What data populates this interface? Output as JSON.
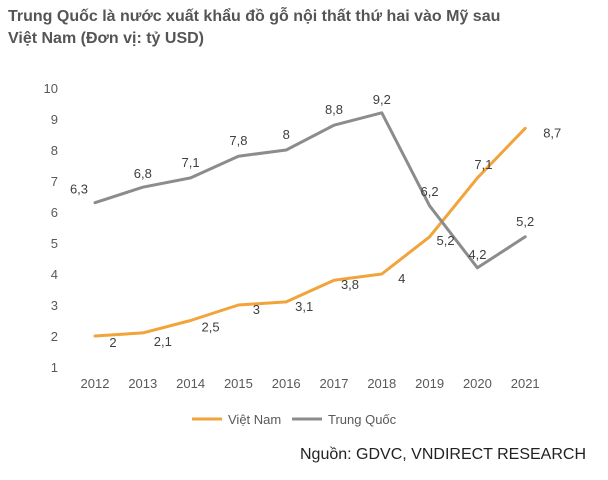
{
  "title": "Trung Quốc là nước xuất khẩu đồ gỗ nội thất thứ hai vào Mỹ sau Việt Nam (Đơn vị: tỷ USD)",
  "source": "Nguồn: GDVC, VNDIRECT RESEARCH",
  "chart_data": {
    "type": "line",
    "title": "Trung Quốc là nước xuất khẩu đồ gỗ nội thất thứ hai vào Mỹ sau Việt Nam (Đơn vị: tỷ USD)",
    "categories": [
      "2012",
      "2013",
      "2014",
      "2015",
      "2016",
      "2017",
      "2018",
      "2019",
      "2020",
      "2021"
    ],
    "ylim": [
      1,
      10
    ],
    "yticks": [
      "1",
      "2",
      "3",
      "4",
      "5",
      "6",
      "7",
      "8",
      "9",
      "10"
    ],
    "grid": false,
    "legend": "bottom",
    "series": [
      {
        "name": "Việt Nam",
        "color": "#F2A33A",
        "values": [
          2,
          2.1,
          2.5,
          3,
          3.1,
          3.8,
          4,
          5.2,
          7.1,
          8.7
        ],
        "labels": [
          "2",
          "2,1",
          "2,5",
          "3",
          "3,1",
          "3,8",
          "4",
          "5,2",
          "7,1",
          "8,7"
        ]
      },
      {
        "name": "Trung Quốc",
        "color": "#8C8C8C",
        "values": [
          6.3,
          6.8,
          7.1,
          7.8,
          8,
          8.8,
          9.2,
          6.2,
          4.2,
          5.2
        ],
        "labels": [
          "6,3",
          "6,8",
          "7,1",
          "7,8",
          "8",
          "8,8",
          "9,2",
          "6,2",
          "4,2",
          "5,2"
        ]
      }
    ]
  }
}
